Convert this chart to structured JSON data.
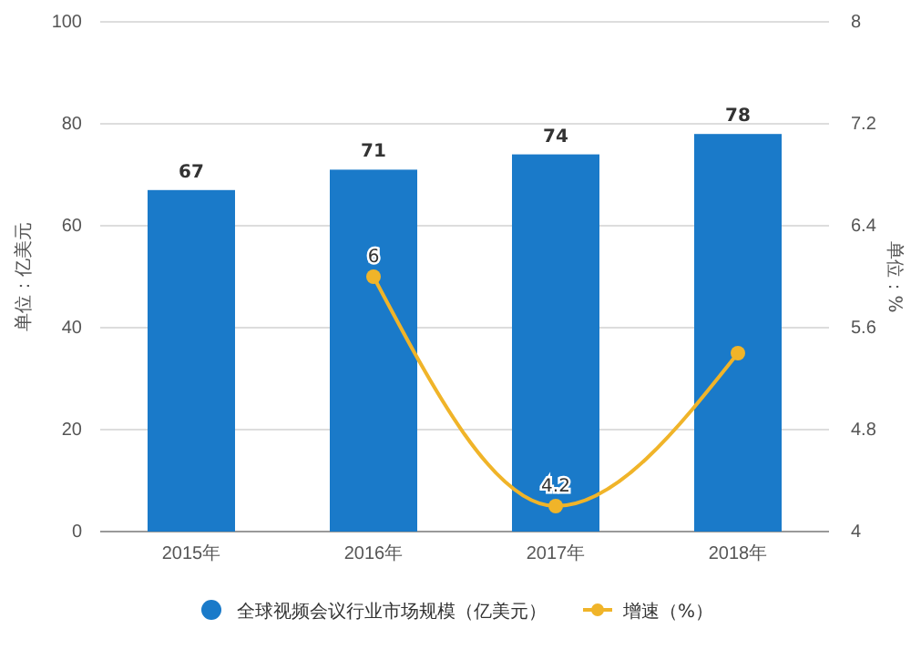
{
  "chart_data": {
    "type": "bar",
    "categories": [
      "2015年",
      "2016年",
      "2017年",
      "2018年"
    ],
    "series": [
      {
        "name": "全球视频会议行业市场规模（亿美元）",
        "color": "#1a7ac9",
        "values": [
          67,
          71,
          74,
          78
        ],
        "value_labels": [
          "67",
          "71",
          "74",
          "78"
        ]
      },
      {
        "name": "增速（%）",
        "type": "line",
        "axis": "y2",
        "color": "#f0b429",
        "values": [
          null,
          6,
          4.2,
          5.4
        ],
        "value_labels": [
          null,
          "6",
          "4.2",
          null
        ],
        "marker": "circle"
      }
    ],
    "ylabel": "单位：亿美元",
    "y2label": "单位：%",
    "ylim": [
      0,
      100
    ],
    "yticks": [
      0,
      20,
      40,
      60,
      80,
      100
    ],
    "y2lim": [
      4,
      8
    ],
    "y2ticks": [
      4,
      4.8,
      5.6,
      6.4,
      7.2,
      8
    ],
    "grid": "y",
    "legend": "bottom"
  }
}
